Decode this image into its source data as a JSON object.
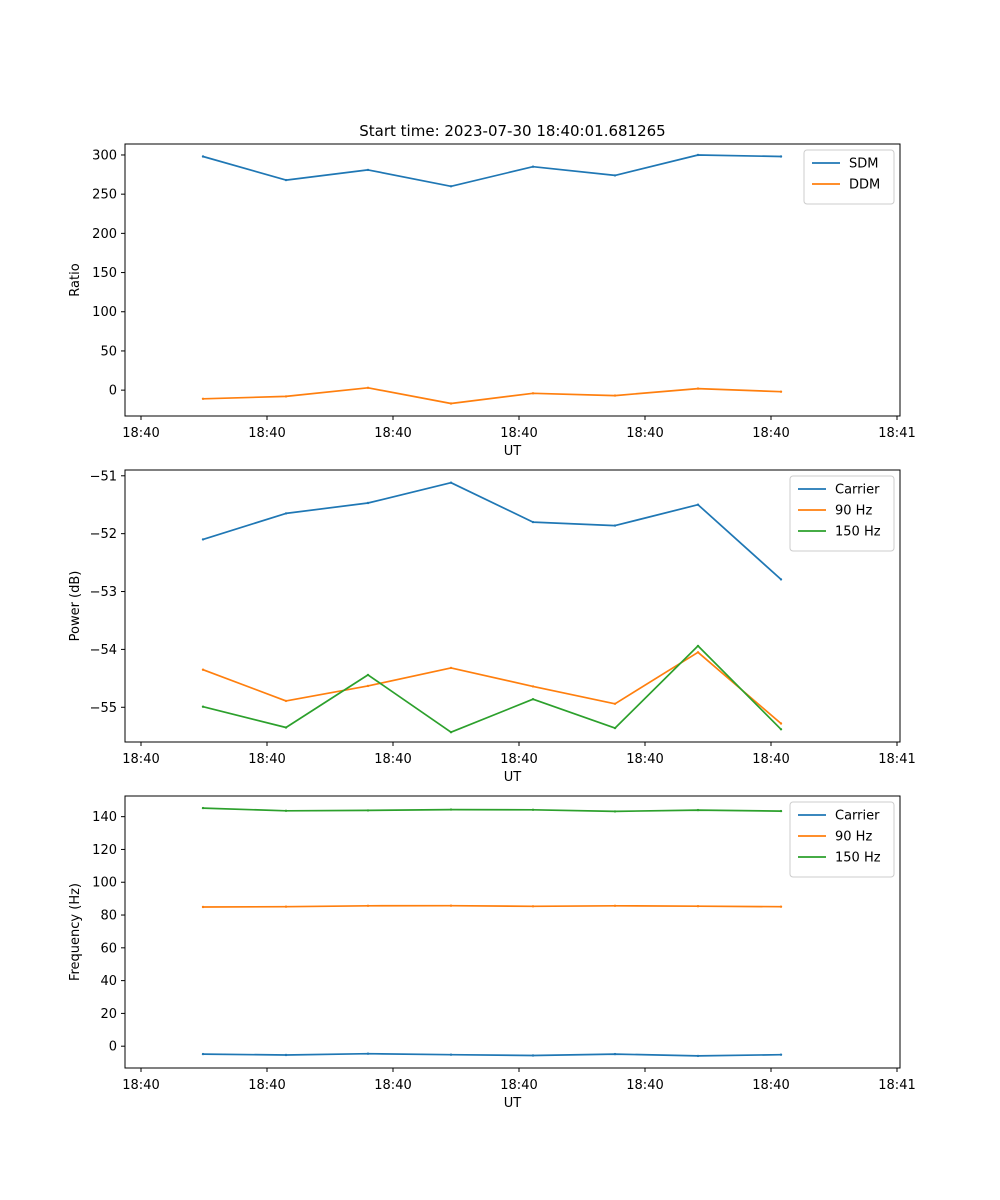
{
  "chart_data": [
    {
      "type": "line",
      "title": "Start time: 2023-07-30 18:40:01.681265",
      "xlabel": "UT",
      "ylabel": "Ratio",
      "x_tick_labels": [
        "18:40",
        "18:40",
        "18:40",
        "18:40",
        "18:40",
        "18:40",
        "18:41"
      ],
      "y_ticks": [
        0,
        50,
        100,
        150,
        200,
        250,
        300
      ],
      "ylim": [
        -33,
        314
      ],
      "legend_position": "top-right",
      "series": [
        {
          "name": "SDM",
          "color": "#1f77b4",
          "values": [
            298,
            268,
            281,
            260,
            285,
            274,
            300,
            298
          ]
        },
        {
          "name": "DDM",
          "color": "#ff7f0e",
          "values": [
            -11,
            -8,
            3,
            -17,
            -4,
            -7,
            2,
            -2
          ]
        }
      ]
    },
    {
      "type": "line",
      "title": "",
      "xlabel": "UT",
      "ylabel": "Power (dB)",
      "x_tick_labels": [
        "18:40",
        "18:40",
        "18:40",
        "18:40",
        "18:40",
        "18:40",
        "18:41"
      ],
      "y_ticks": [
        -51,
        -52,
        -53,
        -54,
        -55
      ],
      "ylim": [
        -55.6,
        -50.9
      ],
      "legend_position": "top-right",
      "series": [
        {
          "name": "Carrier",
          "color": "#1f77b4",
          "values": [
            -52.1,
            -51.65,
            -51.47,
            -51.12,
            -51.8,
            -51.86,
            -51.5,
            -52.79
          ]
        },
        {
          "name": "90 Hz",
          "color": "#ff7f0e",
          "values": [
            -54.35,
            -54.89,
            -54.63,
            -54.32,
            -54.64,
            -54.94,
            -54.05,
            -55.28
          ]
        },
        {
          "name": "150 Hz",
          "color": "#2ca02c",
          "values": [
            -54.99,
            -55.35,
            -54.44,
            -55.43,
            -54.86,
            -55.36,
            -53.94,
            -55.38
          ]
        }
      ]
    },
    {
      "type": "line",
      "title": "",
      "xlabel": "UT",
      "ylabel": "Frequency (Hz)",
      "x_tick_labels": [
        "18:40",
        "18:40",
        "18:40",
        "18:40",
        "18:40",
        "18:40",
        "18:41"
      ],
      "y_ticks": [
        0,
        20,
        40,
        60,
        80,
        100,
        120,
        140
      ],
      "ylim": [
        -13.3,
        152.6
      ],
      "legend_position": "top-right",
      "series": [
        {
          "name": "Carrier",
          "color": "#1f77b4",
          "values": [
            -4.8,
            -5.4,
            -4.6,
            -5.2,
            -5.7,
            -4.8,
            -5.9,
            -5.2
          ]
        },
        {
          "name": "90 Hz",
          "color": "#ff7f0e",
          "values": [
            84.9,
            85.1,
            85.6,
            85.7,
            85.3,
            85.6,
            85.4,
            85.1
          ]
        },
        {
          "name": "150 Hz",
          "color": "#2ca02c",
          "values": [
            145.2,
            143.6,
            143.8,
            144.3,
            144.2,
            143.2,
            144.0,
            143.4
          ]
        }
      ]
    }
  ]
}
